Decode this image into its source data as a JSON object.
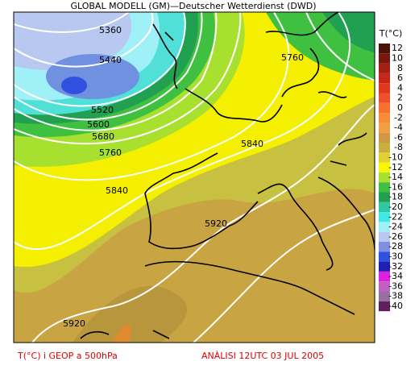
{
  "header": {
    "title": "GLOBAL MODELL (GM)—Deutscher Wetterdienst (DWD)"
  },
  "contour_labels": [
    "5360",
    "5440",
    "5520",
    "5600",
    "5680",
    "5760",
    "5840",
    "5760",
    "5840",
    "5920",
    "5920"
  ],
  "legend": {
    "title": "T(°C)",
    "items": [
      {
        "label": "12",
        "color": "#4a1208"
      },
      {
        "label": "10",
        "color": "#78180c"
      },
      {
        "label": "8",
        "color": "#a02014"
      },
      {
        "label": "6",
        "color": "#c42818"
      },
      {
        "label": "4",
        "color": "#e03820"
      },
      {
        "label": "2",
        "color": "#f05028"
      },
      {
        "label": "0",
        "color": "#f87030"
      },
      {
        "label": "-2",
        "color": "#f88c38"
      },
      {
        "label": "-4",
        "color": "#f0a040"
      },
      {
        "label": "-6",
        "color": "#d09840"
      },
      {
        "label": "-8",
        "color": "#c8b040"
      },
      {
        "label": "-10",
        "color": "#e0d030"
      },
      {
        "label": "-12",
        "color": "#f8f800"
      },
      {
        "label": "-14",
        "color": "#a8e030"
      },
      {
        "label": "-16",
        "color": "#40c040"
      },
      {
        "label": "-18",
        "color": "#20a050"
      },
      {
        "label": "-20",
        "color": "#30c8a0"
      },
      {
        "label": "-22",
        "color": "#40e8e8"
      },
      {
        "label": "-24",
        "color": "#a0f0f8"
      },
      {
        "label": "-26",
        "color": "#b8c8f0"
      },
      {
        "label": "-28",
        "color": "#8090e0"
      },
      {
        "label": "-30",
        "color": "#3050e0"
      },
      {
        "label": "-32",
        "color": "#2020b0"
      },
      {
        "label": "-34",
        "color": "#e020e0"
      },
      {
        "label": "-36",
        "color": "#c060c0"
      },
      {
        "label": "-38",
        "color": "#9870a0"
      },
      {
        "label": "-40",
        "color": "#602060"
      }
    ]
  },
  "footer": {
    "left": "T(°C) i GEOP a 500hPa",
    "right": "ANÀLISI 12UTC 03 JUL 2005"
  }
}
